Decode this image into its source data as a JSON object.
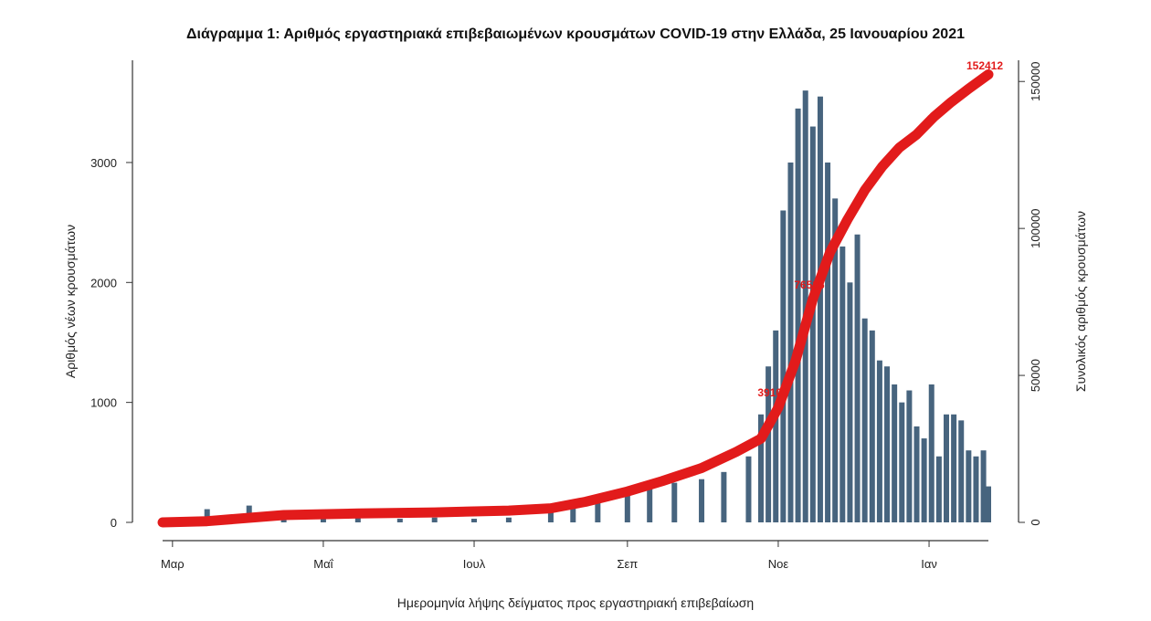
{
  "chart_data": {
    "type": "bar+line",
    "title": "Διάγραμμα 1: Αριθμός εργαστηριακά επιβεβαιωμένων κρουσμάτων COVID-19 στην Ελλάδα, 25 Ιανουαρίου 2021",
    "xlabel": "Ημερομηνία λήψης δείγματος προς εργαστηριακή επιβεβαίωση",
    "ylabel_left": "Αριθμός νέων κρουσμάτων",
    "ylabel_right": "Συνολικός αριθμός κρουσμάτων",
    "x_ticks": [
      "Μαρ",
      "Μαΐ",
      "Ιουλ",
      "Σεπ",
      "Νοε",
      "Ιαν"
    ],
    "x_tick_dates": [
      "2020-03-01",
      "2020-05-01",
      "2020-07-01",
      "2020-09-01",
      "2020-11-01",
      "2021-01-01"
    ],
    "x_range": [
      "2020-02-26",
      "2021-01-25"
    ],
    "y_left_ticks": [
      "0",
      "1000",
      "2000",
      "3000"
    ],
    "y_left_range": [
      0,
      3700
    ],
    "y_right_ticks": [
      "0",
      "50000",
      "100000",
      "150000"
    ],
    "y_right_range": [
      0,
      151000
    ],
    "series": [
      {
        "kind": "bar",
        "axis": "left",
        "color": "#47647e",
        "x": [
          "2020-03-01",
          "2020-03-15",
          "2020-04-01",
          "2020-04-15",
          "2020-05-01",
          "2020-05-15",
          "2020-06-01",
          "2020-06-15",
          "2020-07-01",
          "2020-07-15",
          "2020-08-01",
          "2020-08-10",
          "2020-08-20",
          "2020-09-01",
          "2020-09-10",
          "2020-09-20",
          "2020-10-01",
          "2020-10-10",
          "2020-10-20",
          "2020-10-25",
          "2020-10-28",
          "2020-10-31",
          "2020-11-03",
          "2020-11-06",
          "2020-11-09",
          "2020-11-12",
          "2020-11-15",
          "2020-11-18",
          "2020-11-21",
          "2020-11-24",
          "2020-11-27",
          "2020-11-30",
          "2020-12-03",
          "2020-12-06",
          "2020-12-09",
          "2020-12-12",
          "2020-12-15",
          "2020-12-18",
          "2020-12-21",
          "2020-12-24",
          "2020-12-27",
          "2020-12-30",
          "2021-01-02",
          "2021-01-05",
          "2021-01-08",
          "2021-01-11",
          "2021-01-14",
          "2021-01-17",
          "2021-01-20",
          "2021-01-23",
          "2021-01-25"
        ],
        "values": [
          40,
          110,
          140,
          80,
          60,
          50,
          30,
          40,
          30,
          40,
          80,
          180,
          230,
          250,
          300,
          330,
          360,
          420,
          550,
          900,
          1300,
          1600,
          2600,
          3000,
          3450,
          3600,
          3300,
          3550,
          3000,
          2700,
          2300,
          2000,
          2400,
          1700,
          1600,
          1350,
          1300,
          1150,
          1000,
          1100,
          800,
          700,
          1150,
          550,
          900,
          900,
          850,
          600,
          550,
          600,
          300
        ]
      },
      {
        "kind": "line",
        "axis": "right",
        "color": "#e21b1b",
        "x": [
          "2020-02-26",
          "2020-03-15",
          "2020-04-15",
          "2020-05-15",
          "2020-06-15",
          "2020-07-15",
          "2020-08-01",
          "2020-08-15",
          "2020-09-01",
          "2020-09-15",
          "2020-10-01",
          "2020-10-15",
          "2020-10-25",
          "2020-11-01",
          "2020-11-08",
          "2020-11-15",
          "2020-11-22",
          "2020-11-29",
          "2020-12-06",
          "2020-12-13",
          "2020-12-20",
          "2020-12-27",
          "2021-01-03",
          "2021-01-10",
          "2021-01-17",
          "2021-01-25"
        ],
        "values": [
          0,
          400,
          2500,
          3000,
          3400,
          4000,
          4800,
          7000,
          10500,
          14000,
          18500,
          24000,
          28500,
          39000,
          55000,
          76000,
          92000,
          103000,
          113000,
          121000,
          127500,
          132000,
          138000,
          143000,
          147500,
          152412
        ]
      }
    ],
    "annotations": [
      "152412",
      "76536",
      "39108"
    ]
  }
}
